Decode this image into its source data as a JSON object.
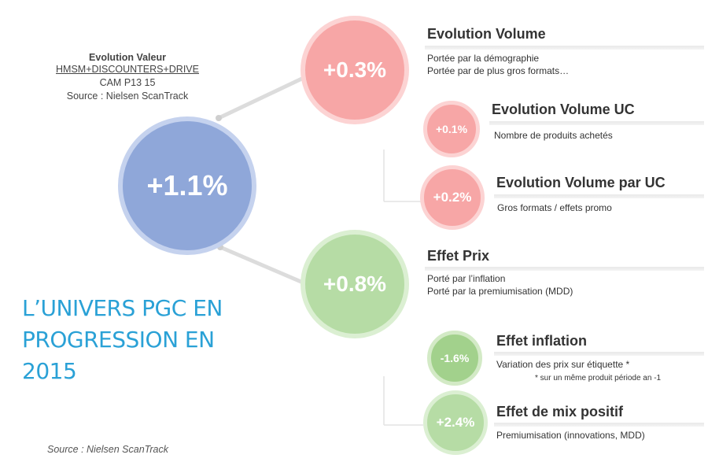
{
  "info": {
    "title": "Evolution Valeur",
    "channels": "HMSM+DISCOUNTERS+DRIVE",
    "period": "CAM P13 15",
    "source": "Source : Nielsen ScanTrack"
  },
  "heading": {
    "line1": "L’UNIVERS PGC EN",
    "line2": "PROGRESSION EN",
    "line3": "2015"
  },
  "source_bottom": "Source : Nielsen ScanTrack",
  "circles": {
    "main": "+1.1%",
    "volume": "+0.3%",
    "volume_uc": "+0.1%",
    "volume_par_uc": "+0.2%",
    "prix": "+0.8%",
    "inflation": "-1.6%",
    "mix": "+2.4%"
  },
  "labels": {
    "volume": {
      "title": "Evolution Volume",
      "desc1": "Portée par la démographie",
      "desc2": "Portée par de plus gros formats…"
    },
    "volume_uc": {
      "title": "Evolution Volume UC",
      "desc1": "Nombre de produits achetés"
    },
    "volume_par_uc": {
      "title": "Evolution Volume par UC",
      "desc1": "Gros formats / effets promo"
    },
    "prix": {
      "title": "Effet Prix",
      "desc1": "Porté par l’inflation",
      "desc2": "Porté par la premiumisation (MDD)"
    },
    "inflation": {
      "title": "Effet inflation",
      "desc1": "Variation des prix sur étiquette *",
      "note": "* sur un même produit période an -1"
    },
    "mix": {
      "title": "Effet de mix positif",
      "desc1": "Premiumisation (innovations, MDD)"
    }
  },
  "colors": {
    "main": "#8fa7d9",
    "volume": "#f7a6a6",
    "prix": "#b6dca5",
    "inflation": "#a2d18c",
    "heading": "#2aa1d6"
  }
}
